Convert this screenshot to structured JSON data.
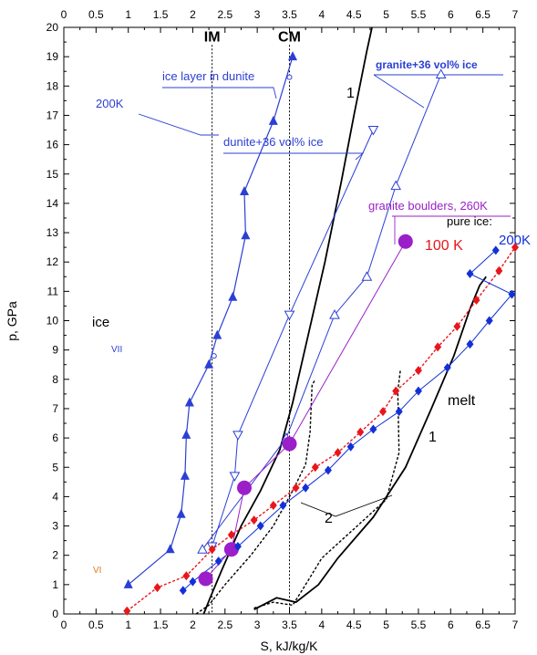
{
  "chart_data": {
    "type": "line",
    "xlabel": "S, kJ/kg/K",
    "ylabel": "p, GPa",
    "xlim": [
      0,
      7
    ],
    "ylim": [
      0,
      20
    ],
    "x_ticks": [
      "0",
      "0.5",
      "1",
      "1.5",
      "2",
      "2.5",
      "3",
      "3.5",
      "4",
      "4.5",
      "5",
      "5.5",
      "6",
      "6.5",
      "7"
    ],
    "y_ticks": [
      "0",
      "1",
      "2",
      "3",
      "4",
      "5",
      "6",
      "7",
      "8",
      "9",
      "10",
      "11",
      "12",
      "13",
      "14",
      "15",
      "16",
      "17",
      "18",
      "19",
      "20"
    ],
    "grid": false,
    "colors": {
      "ice_layer": "#2b3fd4",
      "red_series": "#e8161b",
      "blue_series": "#1230d8",
      "purple": "#9b1fc9",
      "black": "#000000",
      "vi_label": "#e07a20"
    },
    "vertical_lines": [
      {
        "x": 2.3,
        "label": "IM"
      },
      {
        "x": 3.5,
        "label": "CM"
      }
    ],
    "series": [
      {
        "name": "ice layer in dunite",
        "marker": "filled-triangle",
        "points": [
          [
            1.0,
            1.0
          ],
          [
            1.65,
            2.2
          ],
          [
            1.82,
            3.4
          ],
          [
            1.88,
            4.7
          ],
          [
            1.9,
            6.1
          ],
          [
            1.95,
            7.2
          ],
          [
            2.25,
            8.5
          ],
          [
            2.38,
            9.5
          ],
          [
            2.62,
            10.8
          ],
          [
            2.82,
            12.9
          ],
          [
            2.8,
            14.4
          ],
          [
            3.25,
            16.8
          ],
          [
            3.55,
            19.0
          ]
        ]
      },
      {
        "name": "dunite+36 vol% ice",
        "marker": "open-triangle-down",
        "points": [
          [
            2.3,
            2.3
          ],
          [
            2.65,
            4.7
          ],
          [
            2.7,
            6.1
          ],
          [
            3.5,
            10.2
          ],
          [
            4.8,
            16.5
          ]
        ]
      },
      {
        "name": "granite+36 vol% ice",
        "marker": "open-triangle-up",
        "points": [
          [
            2.15,
            2.2
          ],
          [
            3.45,
            6.0
          ],
          [
            4.2,
            10.2
          ],
          [
            4.7,
            11.5
          ],
          [
            5.15,
            14.6
          ],
          [
            5.85,
            18.4
          ]
        ]
      },
      {
        "name": "granite boulders, 260K",
        "marker": "big-dot",
        "points": [
          [
            2.2,
            1.2
          ],
          [
            2.6,
            2.2
          ],
          [
            2.8,
            4.3
          ],
          [
            3.5,
            5.8
          ],
          [
            5.3,
            12.7
          ]
        ]
      },
      {
        "name": "100 K",
        "marker": "red-diamond",
        "points": [
          [
            0.98,
            0.1
          ],
          [
            1.45,
            0.9
          ],
          [
            1.9,
            1.3
          ],
          [
            2.3,
            2.2
          ],
          [
            2.6,
            2.7
          ],
          [
            2.95,
            3.2
          ],
          [
            3.25,
            3.7
          ],
          [
            3.6,
            4.3
          ],
          [
            3.9,
            5.0
          ],
          [
            4.25,
            5.5
          ],
          [
            4.6,
            6.2
          ],
          [
            4.95,
            6.9
          ],
          [
            5.15,
            7.6
          ],
          [
            5.5,
            8.3
          ],
          [
            5.8,
            9.1
          ],
          [
            6.1,
            9.8
          ],
          [
            6.4,
            10.7
          ],
          [
            6.75,
            11.7
          ],
          [
            7.0,
            12.5
          ]
        ]
      },
      {
        "name": "200K",
        "marker": "blue-diamond",
        "points": [
          [
            1.85,
            0.8
          ],
          [
            2.0,
            1.1
          ],
          [
            2.4,
            1.8
          ],
          [
            2.7,
            2.3
          ],
          [
            3.05,
            3.0
          ],
          [
            3.4,
            3.7
          ],
          [
            3.75,
            4.3
          ],
          [
            4.1,
            4.9
          ],
          [
            4.45,
            5.7
          ],
          [
            4.8,
            6.3
          ],
          [
            5.2,
            6.9
          ],
          [
            5.5,
            7.6
          ],
          [
            5.95,
            8.4
          ],
          [
            6.3,
            9.2
          ],
          [
            6.6,
            10.0
          ],
          [
            6.95,
            10.9
          ],
          [
            6.3,
            11.6
          ],
          [
            6.7,
            12.4
          ]
        ]
      }
    ],
    "annotations": [
      "ice layer in dunite",
      "200K",
      "granite+36 vol% ice",
      "dunite+36 vol% ice",
      "granite boulders, 260K",
      "pure ice:",
      "100 K",
      "200K",
      "ice",
      "VII",
      "VI",
      "melt",
      "1",
      "1",
      "2",
      "IM",
      "CM"
    ]
  }
}
